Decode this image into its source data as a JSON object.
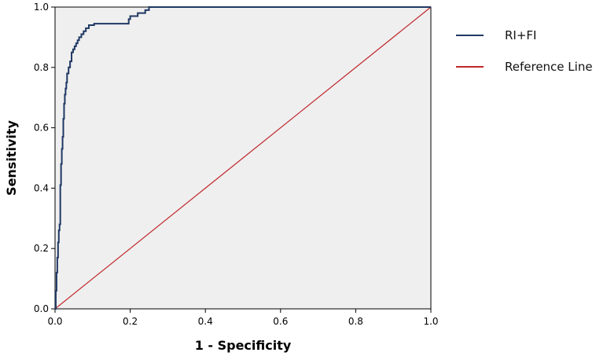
{
  "chart_data": {
    "type": "line",
    "title": "",
    "xlabel": "1 - Specificity",
    "ylabel": "Sensitivity",
    "xlim": [
      0,
      1
    ],
    "ylim": [
      0,
      1
    ],
    "x_ticks": [
      "0.0",
      "0.2",
      "0.4",
      "0.6",
      "0.8",
      "1.0"
    ],
    "y_ticks": [
      "0.0",
      "0.2",
      "0.4",
      "0.6",
      "0.8",
      "1.0"
    ],
    "grid": false,
    "legend_position": "right",
    "background_color": "#efefef",
    "series": [
      {
        "name": "RI+FI",
        "color": "#1f3864",
        "step": true,
        "x": [
          0.0,
          0.002,
          0.004,
          0.006,
          0.008,
          0.01,
          0.012,
          0.014,
          0.016,
          0.018,
          0.02,
          0.022,
          0.024,
          0.026,
          0.028,
          0.03,
          0.032,
          0.036,
          0.04,
          0.044,
          0.048,
          0.052,
          0.056,
          0.06,
          0.064,
          0.07,
          0.076,
          0.082,
          0.09,
          0.096,
          0.104,
          0.11,
          0.15,
          0.196,
          0.2,
          0.22,
          0.24,
          0.25,
          1.0
        ],
        "y": [
          0.0,
          0.06,
          0.12,
          0.17,
          0.22,
          0.26,
          0.28,
          0.41,
          0.48,
          0.53,
          0.57,
          0.63,
          0.68,
          0.71,
          0.73,
          0.75,
          0.78,
          0.8,
          0.82,
          0.85,
          0.86,
          0.87,
          0.88,
          0.89,
          0.9,
          0.91,
          0.92,
          0.93,
          0.94,
          0.94,
          0.945,
          0.945,
          0.945,
          0.96,
          0.97,
          0.98,
          0.99,
          1.0,
          1.0
        ]
      },
      {
        "name": "Reference Line",
        "color": "#c0272d",
        "step": false,
        "x": [
          0,
          1
        ],
        "y": [
          0,
          1
        ]
      }
    ]
  }
}
